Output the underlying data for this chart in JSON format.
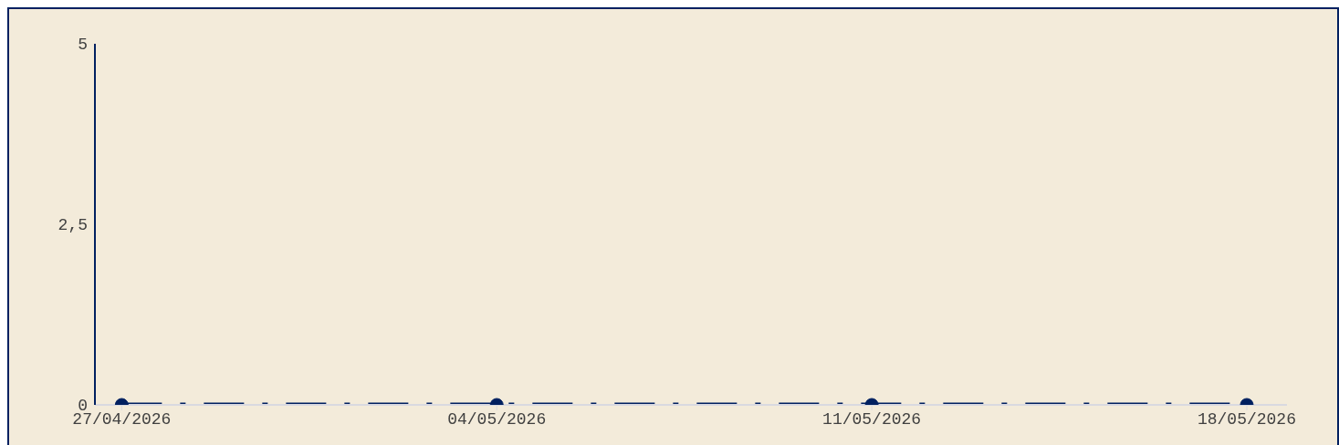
{
  "chart_data": {
    "type": "line",
    "x": [
      "2026-04-27",
      "2026-05-04",
      "2026-05-11",
      "2026-05-18"
    ],
    "series": [
      {
        "color": "#002060",
        "values": [
          0,
          0,
          0,
          0
        ]
      }
    ],
    "xlim": [
      "2026-04-26T12:00",
      "2026-05-18T18:00"
    ],
    "xticks": [
      {
        "value": "2026-04-27",
        "label": "27/04/2026"
      },
      {
        "value": "2026-05-04",
        "label": "04/05/2026"
      },
      {
        "value": "2026-05-11",
        "label": "11/05/2026"
      },
      {
        "value": "2026-05-18",
        "label": "18/05/2026"
      }
    ],
    "ylim": [
      0,
      5
    ],
    "yticks": [
      0,
      {
        "value": 2.5,
        "label": "2,5"
      },
      5
    ],
    "grid": false,
    "legend": false,
    "marker": "circle",
    "line_style": "dashed"
  }
}
